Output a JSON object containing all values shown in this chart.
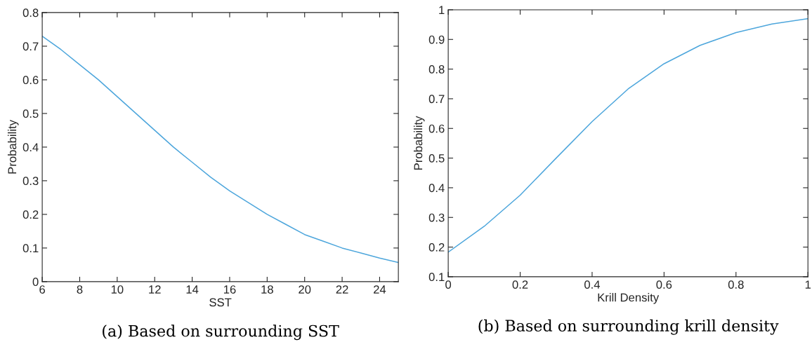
{
  "chart_data": [
    {
      "type": "line",
      "xlabel": "SST",
      "ylabel": "Probability",
      "x": [
        6,
        7,
        8,
        9,
        10,
        11,
        12,
        13,
        14,
        15,
        16,
        17,
        18,
        19,
        20,
        21,
        22,
        23,
        24,
        25
      ],
      "series": [
        {
          "color": "#4da6dc",
          "values": [
            0.73,
            0.69,
            0.645,
            0.6,
            0.55,
            0.5,
            0.45,
            0.4,
            0.355,
            0.31,
            0.27,
            0.235,
            0.2,
            0.17,
            0.14,
            0.12,
            0.1,
            0.085,
            0.07,
            0.057
          ]
        }
      ],
      "xlim": [
        6,
        25
      ],
      "xticks": [
        6,
        8,
        10,
        12,
        14,
        16,
        18,
        20,
        22,
        24
      ],
      "ylim": [
        0,
        0.8
      ],
      "yticks": [
        0,
        0.1,
        0.2,
        0.3,
        0.4,
        0.5,
        0.6,
        0.7,
        0.8
      ],
      "grid": false,
      "annotations": [
        "(a) Based on surrounding SST"
      ]
    },
    {
      "type": "line",
      "xlabel": "Krill Density",
      "ylabel": "Probability",
      "x": [
        0,
        0.1,
        0.2,
        0.3,
        0.4,
        0.5,
        0.6,
        0.7,
        0.8,
        0.9,
        1
      ],
      "series": [
        {
          "color": "#4da6dc",
          "values": [
            0.183,
            0.27,
            0.375,
            0.5,
            0.623,
            0.733,
            0.818,
            0.88,
            0.923,
            0.952,
            0.97
          ]
        }
      ],
      "xlim": [
        0,
        1
      ],
      "xticks": [
        0,
        0.2,
        0.4,
        0.6,
        0.8,
        1
      ],
      "ylim": [
        0.1,
        1
      ],
      "yticks": [
        0.1,
        0.2,
        0.3,
        0.4,
        0.5,
        0.6,
        0.7,
        0.8,
        0.9,
        1
      ],
      "grid": false,
      "annotations": [
        "(b) Based on surrounding krill density"
      ]
    }
  ]
}
